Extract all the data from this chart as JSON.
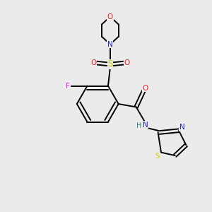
{
  "background_color": "#ebebeb",
  "atom_colors": {
    "C": "#000000",
    "N": "#2222cc",
    "O": "#ee2222",
    "S_sulfonyl": "#cccc00",
    "S_thiazole": "#cccc00",
    "F": "#ee22ee",
    "H": "#228888"
  },
  "figsize": [
    3.0,
    3.0
  ],
  "dpi": 100,
  "lw": 1.4,
  "fontsize": 7.5
}
